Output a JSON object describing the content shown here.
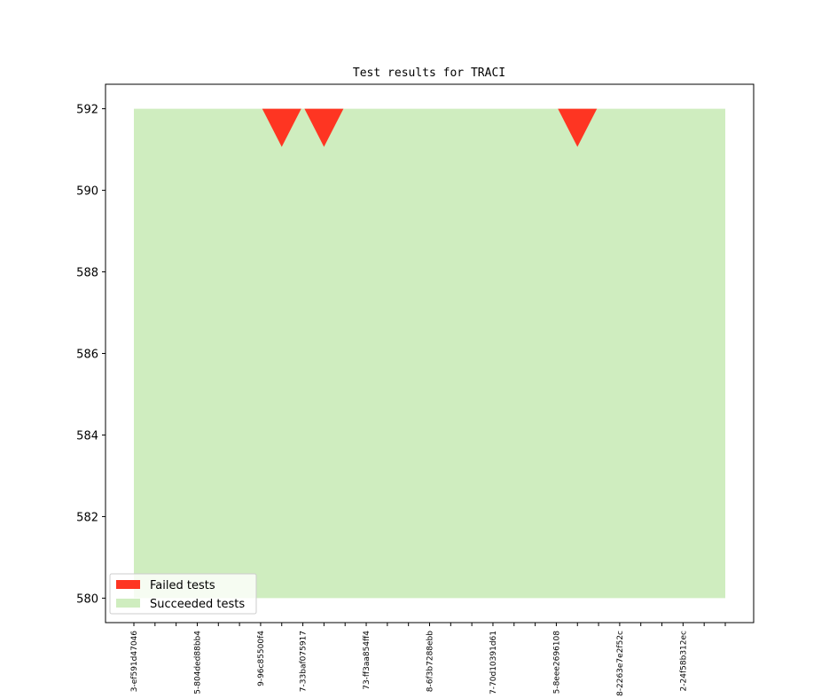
{
  "chart_data": {
    "type": "area",
    "title": "Test results for TRACI",
    "xlabel": "",
    "ylabel": "",
    "ylim": [
      579.4,
      592.6
    ],
    "yticks": [
      580,
      582,
      584,
      586,
      588,
      590,
      592
    ],
    "categories": [
      "3-ef591d47046",
      "",
      "",
      "5-804ded88bb4",
      "",
      "",
      "9-96c85500f4",
      "",
      "7-33baf075917",
      "",
      "",
      "73-ff3aa854ff4",
      "",
      "",
      "8-6f3b7288ebb",
      "",
      "",
      "7-70d10391d61",
      "",
      "",
      "5-8eee2696108",
      "",
      "",
      "8-2263e7e2f52c",
      "",
      "",
      "2-24f58b312ec",
      "",
      ""
    ],
    "series": [
      {
        "name": "Succeeded tests",
        "color": "#cfedbf",
        "values": [
          592,
          592,
          592,
          592,
          592,
          592,
          592,
          592,
          592,
          592,
          592,
          592,
          592,
          592,
          592,
          592,
          592,
          592,
          592,
          592,
          592,
          592,
          592,
          592,
          592,
          592,
          592,
          592,
          592
        ],
        "baseline": 580
      },
      {
        "name": "Failed tests",
        "color": "#fe3522",
        "marker": "triangle-down",
        "points": [
          {
            "x_index": 7,
            "y": 592
          },
          {
            "x_index": 9,
            "y": 592
          },
          {
            "x_index": 21,
            "y": 592
          }
        ]
      }
    ],
    "legend": {
      "position": "lower-left",
      "order": [
        "Failed tests",
        "Succeeded tests"
      ]
    },
    "grid": false
  }
}
